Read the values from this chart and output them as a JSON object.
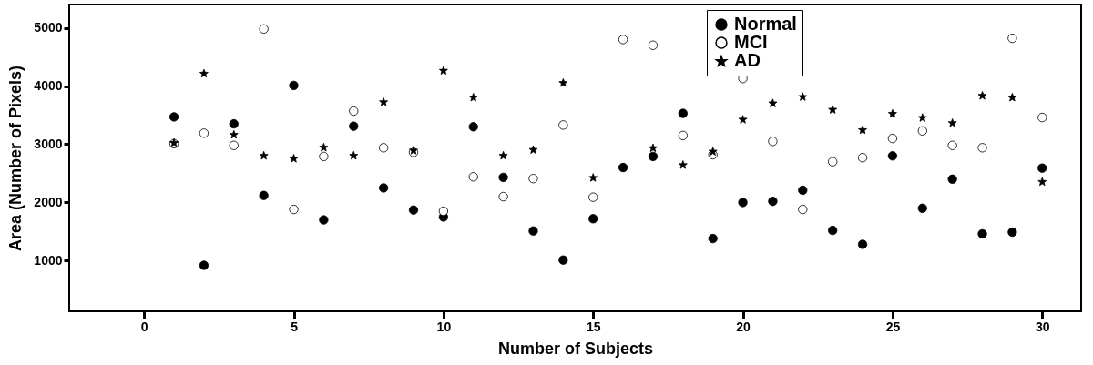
{
  "chart_data": {
    "type": "scatter",
    "xlabel": "Number of Subjects",
    "ylabel": "Area (Number of Pixels)",
    "x": [
      1,
      2,
      3,
      4,
      5,
      6,
      7,
      8,
      9,
      10,
      11,
      12,
      13,
      14,
      15,
      16,
      17,
      18,
      19,
      20,
      21,
      22,
      23,
      24,
      25,
      26,
      27,
      28,
      29,
      30
    ],
    "xlim": [
      -2.5,
      31.3
    ],
    "xticks": [
      0,
      5,
      10,
      15,
      20,
      25,
      30
    ],
    "ylim": [
      130,
      5400
    ],
    "yticks": [
      1000,
      2000,
      3000,
      4000,
      5000
    ],
    "legend": "top right",
    "grid": false,
    "series": [
      {
        "name": "Normal",
        "color": "#000000",
        "marker": "circle",
        "values": [
          3470,
          920,
          3350,
          2120,
          4010,
          1700,
          3310,
          2250,
          1870,
          1750,
          3300,
          2430,
          1510,
          1010,
          1720,
          2600,
          2790,
          3530,
          1380,
          2000,
          2020,
          2210,
          1520,
          1280,
          2800,
          1900,
          2400,
          1460,
          1490,
          2590
        ]
      },
      {
        "name": "MCI",
        "color": "#ffffff",
        "marker": "circle",
        "values": [
          3010,
          3190,
          2980,
          4980,
          1880,
          2790,
          3570,
          2940,
          2860,
          1850,
          2440,
          2100,
          2410,
          3330,
          2090,
          4800,
          4700,
          3150,
          2820,
          4130,
          3050,
          1880,
          2700,
          2770,
          3100,
          3230,
          2980,
          2940,
          4820,
          3460
        ]
      },
      {
        "name": "AD",
        "color": "#000000",
        "marker": "star",
        "values": [
          3030,
          4220,
          3170,
          2810,
          2760,
          2950,
          2810,
          3730,
          2900,
          4270,
          3810,
          2810,
          2910,
          4060,
          2430,
          2610,
          2940,
          2650,
          2880,
          3430,
          3710,
          3820,
          3600,
          3250,
          3530,
          3460,
          3370,
          3840,
          3810,
          2360
        ]
      }
    ]
  }
}
